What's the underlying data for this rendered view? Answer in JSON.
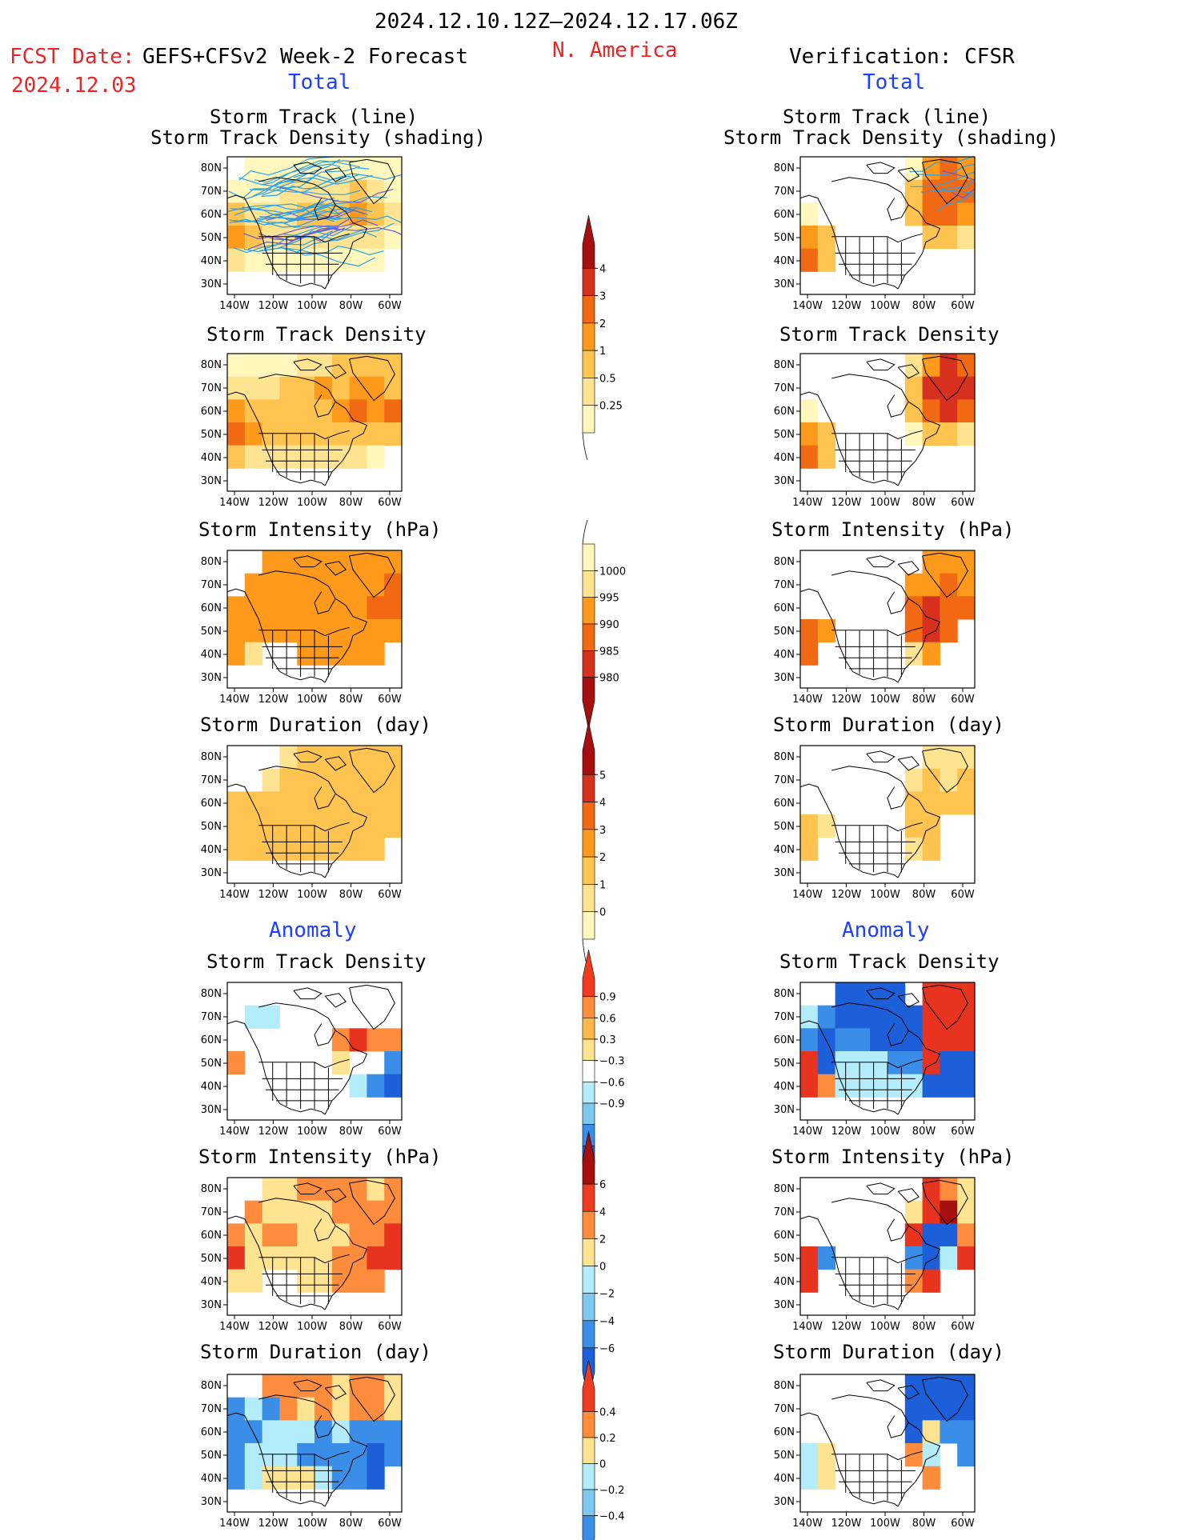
{
  "header": {
    "date_range": "2024.12.10.12Z–2024.12.17.06Z",
    "region": "N. America",
    "fcst_label": "FCST Date:",
    "fcst_model": "GEFS+CFSv2 Week-2 Forecast",
    "fcst_date": "2024.12.03",
    "verification": "Verification: CFSR",
    "total_left": "Total",
    "total_right": "Total",
    "anomaly_left": "Anomaly",
    "anomaly_right": "Anomaly"
  },
  "axes": {
    "lat_ticks": [
      "80N",
      "70N",
      "60N",
      "50N",
      "40N",
      "30N"
    ],
    "lon_ticks": [
      "140W",
      "120W",
      "100W",
      "80W",
      "60W"
    ]
  },
  "panel_titles": {
    "track_line": "Storm Track (line)",
    "track_shading": "Storm Track Density (shading)",
    "density": "Storm Track Density",
    "intensity": "Storm Intensity (hPa)",
    "duration": "Storm Duration (day)"
  },
  "colorbars": [
    {
      "id": "density_total",
      "labels": [
        "4",
        "3",
        "2",
        "1",
        "0.5",
        "0.25"
      ],
      "colors": [
        "#a50f0f",
        "#d7301f",
        "#f16913",
        "#fd9a1c",
        "#fec44f",
        "#fee391",
        "#fff7bc"
      ]
    },
    {
      "id": "intensity_total",
      "labels": [
        "1000",
        "995",
        "990",
        "985",
        "980"
      ],
      "colors": [
        "#fff7bc",
        "#fee391",
        "#fd9a1c",
        "#f16913",
        "#d7301f",
        "#a50f0f"
      ]
    },
    {
      "id": "duration_total",
      "labels": [
        "5",
        "4",
        "3",
        "2",
        "1",
        "0"
      ],
      "colors": [
        "#a50f0f",
        "#d7301f",
        "#f16913",
        "#fd9a1c",
        "#fec44f",
        "#fee391",
        "#fff7bc"
      ]
    },
    {
      "id": "density_anom",
      "labels": [
        "0.9",
        "0.6",
        "0.3",
        "−0.3",
        "−0.6",
        "−0.9"
      ],
      "colors": [
        "#f03b20",
        "#fd8d3c",
        "#fdb84b",
        "#fee391",
        "#ffffff",
        "#b3ecfa",
        "#7ec8f0",
        "#3a8ee8",
        "#1c5fd8"
      ]
    },
    {
      "id": "intensity_anom",
      "labels": [
        "6",
        "4",
        "2",
        "0",
        "−2",
        "−4",
        "−6"
      ],
      "colors": [
        "#a50f0f",
        "#f03b20",
        "#fd8d3c",
        "#fee391",
        "#b3ecfa",
        "#7ec8f0",
        "#3a8ee8",
        "#1c5fd8"
      ]
    },
    {
      "id": "duration_anom",
      "labels": [
        "0.4",
        "0.2",
        "0",
        "−0.2",
        "−0.4"
      ],
      "colors": [
        "#f03b20",
        "#fd8d3c",
        "#fee391",
        "#b3ecfa",
        "#7ec8f0",
        "#3a8ee8"
      ]
    }
  ],
  "chart_data": [
    {
      "type": "heatmap",
      "id": "fcst-track",
      "title": "Storm Track (line) Storm Track Density (shading)",
      "column": "GEFS+CFSv2 Week-2 Forecast",
      "section": "Total",
      "has_track_lines": true,
      "cells": [
        [
          0,
          1,
          1,
          1,
          1,
          1,
          1,
          1,
          1,
          1
        ],
        [
          1,
          1,
          1,
          2,
          2,
          2,
          2,
          3,
          2,
          1
        ],
        [
          3,
          2,
          2,
          2,
          3,
          3,
          3,
          4,
          3,
          2
        ],
        [
          4,
          3,
          2,
          2,
          2,
          2,
          2,
          2,
          2,
          1
        ],
        [
          2,
          1,
          1,
          1,
          1,
          1,
          1,
          1,
          1,
          0
        ],
        [
          0,
          0,
          0,
          0,
          0,
          0,
          0,
          0,
          0,
          0
        ]
      ]
    },
    {
      "type": "heatmap",
      "id": "cfsr-track",
      "title": "Storm Track (line) Storm Track Density (shading)",
      "column": "Verification: CFSR",
      "section": "Total",
      "has_track_lines": true,
      "cells": [
        [
          0,
          0,
          0,
          0,
          0,
          0,
          1,
          4,
          5,
          4
        ],
        [
          0,
          0,
          0,
          0,
          0,
          0,
          3,
          5,
          5,
          5
        ],
        [
          1,
          0,
          0,
          0,
          0,
          0,
          3,
          5,
          5,
          4
        ],
        [
          4,
          3,
          0,
          0,
          0,
          0,
          0,
          3,
          3,
          2
        ],
        [
          5,
          3,
          0,
          0,
          0,
          0,
          0,
          0,
          0,
          0
        ],
        [
          0,
          0,
          0,
          0,
          0,
          0,
          0,
          0,
          0,
          0
        ]
      ]
    },
    {
      "type": "heatmap",
      "id": "fcst-density",
      "title": "Storm Track Density",
      "section": "Total",
      "cells": [
        [
          1,
          1,
          1,
          1,
          2,
          2,
          3,
          3,
          3,
          3
        ],
        [
          2,
          2,
          2,
          3,
          3,
          4,
          3,
          4,
          4,
          3
        ],
        [
          4,
          3,
          3,
          3,
          3,
          3,
          4,
          5,
          4,
          5
        ],
        [
          5,
          4,
          3,
          3,
          3,
          3,
          3,
          3,
          3,
          3
        ],
        [
          3,
          2,
          2,
          2,
          2,
          2,
          2,
          2,
          1,
          0
        ],
        [
          0,
          0,
          0,
          0,
          0,
          0,
          0,
          0,
          0,
          0
        ]
      ]
    },
    {
      "type": "heatmap",
      "id": "cfsr-density",
      "title": "Storm Track Density",
      "section": "Total",
      "cells": [
        [
          0,
          0,
          0,
          0,
          0,
          0,
          2,
          4,
          6,
          5
        ],
        [
          0,
          0,
          0,
          0,
          0,
          0,
          3,
          6,
          6,
          6
        ],
        [
          1,
          0,
          0,
          0,
          0,
          0,
          3,
          5,
          6,
          5
        ],
        [
          4,
          3,
          0,
          0,
          0,
          0,
          1,
          3,
          3,
          2
        ],
        [
          5,
          3,
          0,
          0,
          0,
          0,
          0,
          0,
          0,
          0
        ],
        [
          0,
          0,
          0,
          0,
          0,
          0,
          0,
          0,
          0,
          0
        ]
      ]
    },
    {
      "type": "heatmap",
      "id": "fcst-intensity",
      "title": "Storm Intensity (hPa)",
      "section": "Total",
      "cells": [
        [
          0,
          0,
          2,
          2,
          2,
          2,
          2,
          2,
          2,
          2
        ],
        [
          0,
          2,
          2,
          2,
          2,
          2,
          2,
          2,
          2,
          3
        ],
        [
          2,
          2,
          2,
          2,
          2,
          2,
          2,
          2,
          3,
          3
        ],
        [
          2,
          2,
          2,
          2,
          2,
          2,
          2,
          2,
          2,
          2
        ],
        [
          2,
          1,
          0,
          0,
          2,
          2,
          2,
          2,
          2,
          0
        ],
        [
          0,
          0,
          0,
          0,
          0,
          0,
          0,
          0,
          0,
          0
        ]
      ]
    },
    {
      "type": "heatmap",
      "id": "cfsr-intensity",
      "title": "Storm Intensity (hPa)",
      "section": "Total",
      "cells": [
        [
          0,
          0,
          0,
          0,
          0,
          0,
          0,
          2,
          2,
          2
        ],
        [
          0,
          0,
          0,
          0,
          0,
          0,
          2,
          2,
          3,
          2
        ],
        [
          0,
          0,
          0,
          0,
          0,
          0,
          3,
          4,
          3,
          3
        ],
        [
          3,
          2,
          0,
          0,
          0,
          0,
          3,
          4,
          3,
          0
        ],
        [
          3,
          0,
          0,
          0,
          0,
          0,
          1,
          2,
          0,
          0
        ],
        [
          0,
          0,
          0,
          0,
          0,
          0,
          0,
          0,
          0,
          0
        ]
      ]
    },
    {
      "type": "heatmap",
      "id": "fcst-duration",
      "title": "Storm Duration (day)",
      "section": "Total",
      "cells": [
        [
          0,
          0,
          0,
          2,
          3,
          3,
          3,
          3,
          3,
          3
        ],
        [
          0,
          0,
          2,
          3,
          3,
          3,
          3,
          3,
          3,
          3
        ],
        [
          3,
          3,
          3,
          3,
          3,
          3,
          3,
          3,
          3,
          3
        ],
        [
          3,
          3,
          3,
          3,
          3,
          3,
          3,
          3,
          3,
          3
        ],
        [
          3,
          3,
          3,
          3,
          3,
          3,
          3,
          3,
          3,
          0
        ],
        [
          0,
          0,
          0,
          0,
          0,
          0,
          0,
          0,
          0,
          0
        ]
      ]
    },
    {
      "type": "heatmap",
      "id": "cfsr-duration",
      "title": "Storm Duration (day)",
      "section": "Total",
      "cells": [
        [
          0,
          0,
          0,
          0,
          0,
          0,
          0,
          2,
          2,
          2
        ],
        [
          0,
          0,
          0,
          0,
          0,
          0,
          2,
          3,
          2,
          3
        ],
        [
          0,
          0,
          0,
          0,
          0,
          0,
          3,
          3,
          3,
          3
        ],
        [
          3,
          2,
          0,
          0,
          0,
          0,
          3,
          3,
          0,
          0
        ],
        [
          3,
          0,
          0,
          0,
          0,
          0,
          2,
          3,
          0,
          0
        ],
        [
          0,
          0,
          0,
          0,
          0,
          0,
          0,
          0,
          0,
          0
        ]
      ]
    },
    {
      "type": "heatmap",
      "id": "fcst-density-anom",
      "title": "Storm Track Density",
      "section": "Anomaly",
      "cells": [
        [
          0,
          0,
          0,
          0,
          0,
          0,
          0,
          0,
          0,
          0
        ],
        [
          0,
          -1,
          -1,
          0,
          0,
          0,
          0,
          0,
          0,
          0
        ],
        [
          0,
          0,
          0,
          0,
          0,
          0,
          2,
          3,
          2,
          2
        ],
        [
          2,
          0,
          0,
          0,
          0,
          0,
          1,
          0,
          0,
          -2
        ],
        [
          0,
          0,
          0,
          0,
          0,
          0,
          0,
          -1,
          -2,
          -3
        ],
        [
          0,
          0,
          0,
          0,
          0,
          0,
          0,
          0,
          0,
          0
        ]
      ]
    },
    {
      "type": "heatmap",
      "id": "cfsr-density-anom",
      "title": "Storm Track Density",
      "section": "Anomaly",
      "cells": [
        [
          0,
          0,
          -3,
          -3,
          -3,
          -3,
          0,
          3,
          3,
          3
        ],
        [
          -1,
          -2,
          -3,
          -3,
          -3,
          -3,
          -3,
          3,
          3,
          3
        ],
        [
          -2,
          -3,
          -2,
          -2,
          -3,
          -3,
          -3,
          3,
          3,
          3
        ],
        [
          3,
          -3,
          -1,
          -1,
          -1,
          -2,
          -2,
          3,
          -3,
          -3
        ],
        [
          3,
          2,
          -1,
          -1,
          -1,
          -1,
          -1,
          -3,
          -3,
          -3
        ],
        [
          0,
          0,
          0,
          0,
          0,
          0,
          0,
          0,
          0,
          0
        ]
      ]
    },
    {
      "type": "heatmap",
      "id": "fcst-intensity-anom",
      "title": "Storm Intensity (hPa)",
      "section": "Anomaly",
      "cells": [
        [
          0,
          0,
          1,
          1,
          2,
          2,
          2,
          2,
          1,
          2
        ],
        [
          0,
          2,
          1,
          1,
          1,
          1,
          2,
          2,
          2,
          2
        ],
        [
          2,
          1,
          2,
          2,
          1,
          1,
          1,
          2,
          2,
          3
        ],
        [
          3,
          1,
          1,
          1,
          1,
          1,
          2,
          2,
          3,
          3
        ],
        [
          1,
          1,
          0,
          0,
          1,
          1,
          2,
          2,
          2,
          0
        ],
        [
          0,
          0,
          0,
          0,
          0,
          0,
          0,
          0,
          0,
          0
        ]
      ]
    },
    {
      "type": "heatmap",
      "id": "cfsr-intensity-anom",
      "title": "Storm Intensity (hPa)",
      "section": "Anomaly",
      "cells": [
        [
          0,
          0,
          0,
          0,
          0,
          0,
          0,
          3,
          2,
          1
        ],
        [
          0,
          0,
          0,
          0,
          0,
          0,
          1,
          3,
          4,
          1
        ],
        [
          0,
          0,
          0,
          0,
          0,
          0,
          3,
          -3,
          -3,
          2
        ],
        [
          3,
          -2,
          0,
          0,
          0,
          0,
          -2,
          -3,
          -1,
          3
        ],
        [
          3,
          0,
          0,
          0,
          0,
          0,
          2,
          3,
          0,
          0
        ],
        [
          0,
          0,
          0,
          0,
          0,
          0,
          0,
          0,
          0,
          0
        ]
      ]
    },
    {
      "type": "heatmap",
      "id": "fcst-duration-anom",
      "title": "Storm Duration (day)",
      "section": "Anomaly",
      "cells": [
        [
          0,
          0,
          2,
          2,
          2,
          2,
          1,
          2,
          2,
          1
        ],
        [
          -2,
          -1,
          -2,
          2,
          1,
          2,
          1,
          2,
          2,
          1
        ],
        [
          -2,
          -2,
          -1,
          -1,
          -1,
          -2,
          -1,
          -2,
          -2,
          -2
        ],
        [
          -2,
          -1,
          -1,
          -1,
          -2,
          -2,
          -2,
          -2,
          -3,
          -2
        ],
        [
          -2,
          -1,
          1,
          1,
          1,
          -1,
          -2,
          -2,
          -3,
          0
        ],
        [
          0,
          0,
          0,
          0,
          0,
          0,
          0,
          0,
          0,
          0
        ]
      ]
    },
    {
      "type": "heatmap",
      "id": "cfsr-duration-anom",
      "title": "Storm Duration (day)",
      "section": "Anomaly",
      "cells": [
        [
          0,
          0,
          0,
          0,
          0,
          0,
          -3,
          -3,
          -3,
          -3
        ],
        [
          0,
          0,
          0,
          0,
          0,
          0,
          -3,
          -3,
          -3,
          -3
        ],
        [
          0,
          0,
          0,
          0,
          0,
          0,
          -3,
          1,
          -2,
          -2
        ],
        [
          -1,
          1,
          0,
          0,
          0,
          0,
          2,
          -1,
          0,
          -2
        ],
        [
          -1,
          1,
          0,
          0,
          0,
          0,
          0,
          2,
          0,
          0
        ],
        [
          0,
          0,
          0,
          0,
          0,
          0,
          0,
          0,
          0,
          0
        ]
      ]
    }
  ]
}
